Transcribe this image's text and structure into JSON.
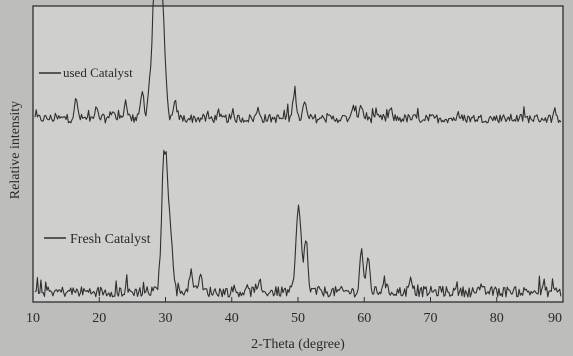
{
  "colors": {
    "background": "#bdbdbb",
    "plot_background": "#cfcfcd",
    "ink": "#2f2f2f"
  },
  "chart_data": {
    "type": "line",
    "title": "",
    "xlabel": "2-Theta (degree)",
    "ylabel": "Relative intensity",
    "xlim": [
      10,
      90
    ],
    "ylim": [
      0,
      10
    ],
    "x_ticks": [
      10,
      20,
      30,
      40,
      50,
      60,
      70,
      80,
      90
    ],
    "y_ticks_shown": false,
    "grid": false,
    "legend_placement": "inline-left",
    "series": [
      {
        "name": "used Catalyst",
        "baseline": 6.2,
        "noise": 0.15,
        "peaks": [
          {
            "x": 16.5,
            "height": 0.6
          },
          {
            "x": 19.5,
            "height": 0.3
          },
          {
            "x": 22.0,
            "height": 0.3
          },
          {
            "x": 24.0,
            "height": 0.6
          },
          {
            "x": 26.5,
            "height": 0.9
          },
          {
            "x": 27.5,
            "height": 0.7
          },
          {
            "x": 28.3,
            "height": 3.6
          },
          {
            "x": 29.0,
            "height": 3.3
          },
          {
            "x": 29.6,
            "height": 2.8
          },
          {
            "x": 31.5,
            "height": 0.5
          },
          {
            "x": 44.0,
            "height": 0.3
          },
          {
            "x": 49.5,
            "height": 1.0
          },
          {
            "x": 51.0,
            "height": 0.5
          },
          {
            "x": 58.5,
            "height": 0.4
          },
          {
            "x": 59.5,
            "height": 0.5
          },
          {
            "x": 64.0,
            "height": 0.25
          }
        ]
      },
      {
        "name": "Fresh Catalyst",
        "baseline": 0.35,
        "noise": 0.18,
        "peaks": [
          {
            "x": 29.8,
            "height": 4.5
          },
          {
            "x": 30.6,
            "height": 2.4
          },
          {
            "x": 33.8,
            "height": 0.7
          },
          {
            "x": 35.2,
            "height": 0.6
          },
          {
            "x": 50.1,
            "height": 2.8
          },
          {
            "x": 51.2,
            "height": 1.8
          },
          {
            "x": 59.6,
            "height": 1.5
          },
          {
            "x": 60.6,
            "height": 1.1
          },
          {
            "x": 63.0,
            "height": 0.4
          },
          {
            "x": 67.0,
            "height": 0.35
          }
        ]
      }
    ]
  }
}
